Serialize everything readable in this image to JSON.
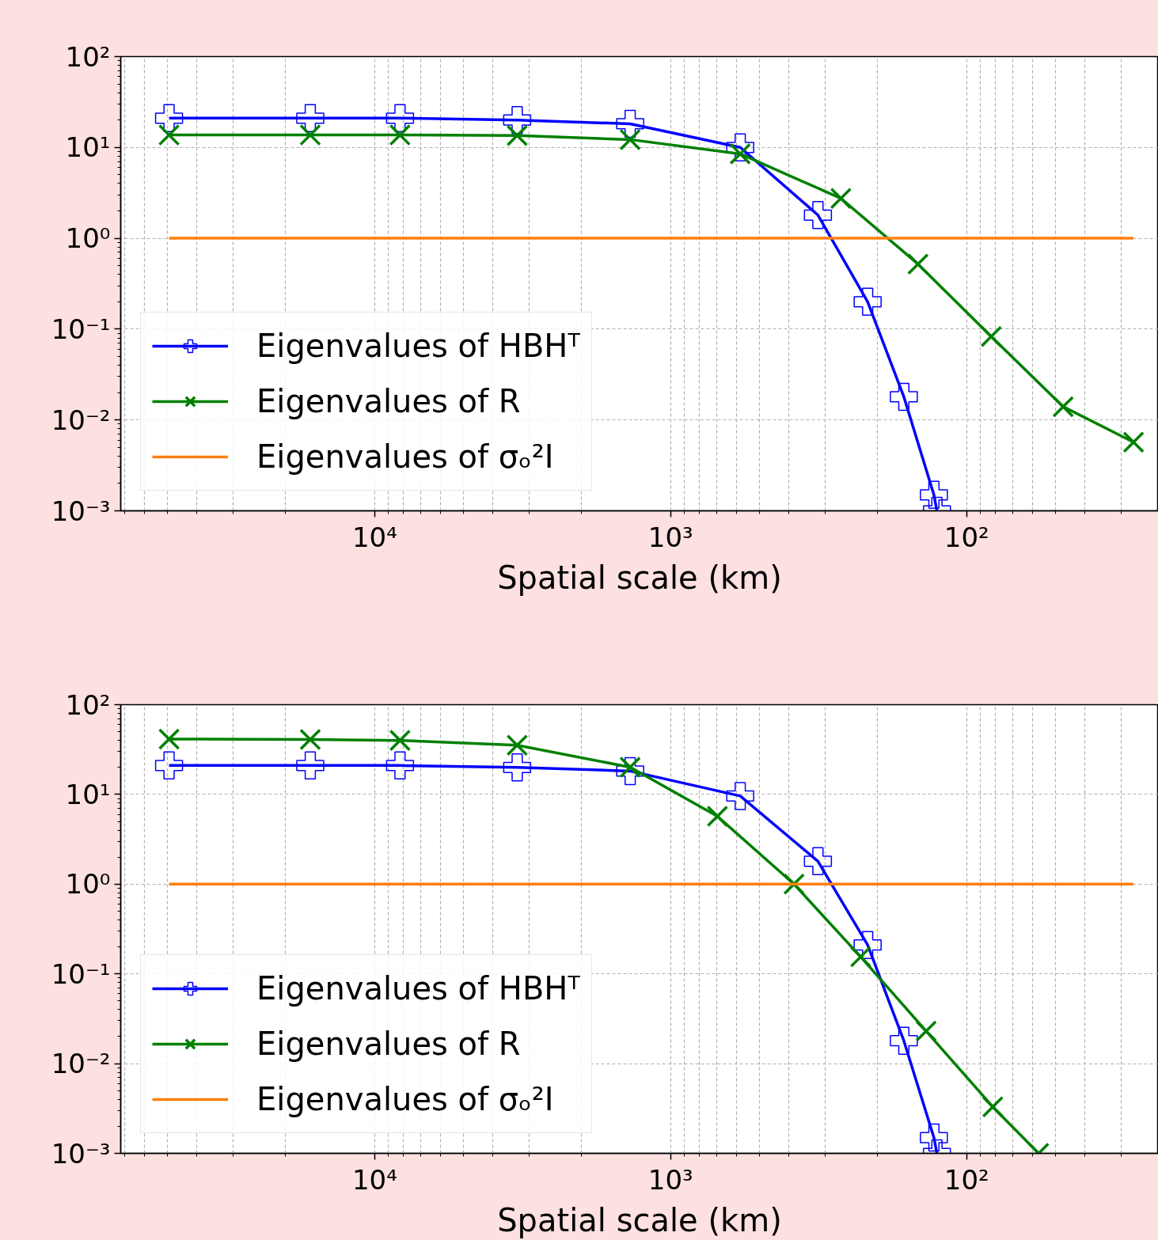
{
  "chart_data": [
    {
      "type": "line",
      "xlabel": "Spatial scale (km)",
      "log": "xy",
      "grid": true,
      "legend": "bottom left",
      "xlim": [
        72100,
        22.5
      ],
      "ylim": [
        0.001,
        100
      ],
      "xticks": [
        {
          "value": 10000,
          "label": "10⁴"
        },
        {
          "value": 1000,
          "label": "10³"
        },
        {
          "value": 100,
          "label": "10²"
        }
      ],
      "yticks": [
        {
          "value": 0.001,
          "label": "10⁻³"
        },
        {
          "value": 0.01,
          "label": "10⁻²"
        },
        {
          "value": 0.1,
          "label": "10⁻¹"
        },
        {
          "value": 1,
          "label": "10⁰"
        },
        {
          "value": 10,
          "label": "10¹"
        },
        {
          "value": 100,
          "label": "10²"
        }
      ],
      "series": [
        {
          "name": "Eigenvalues of HBHᵀ",
          "color": "#0000ff",
          "marker": "cross",
          "x": [
            49500,
            16500,
            8210,
            3300,
            1370,
            582,
            318,
            216,
            163,
            129,
            126
          ],
          "values": [
            21,
            21,
            21,
            20,
            18.2,
            10,
            1.8,
            0.2,
            0.018,
            0.0015,
            0.001
          ]
        },
        {
          "name": "Eigenvalues of R",
          "color": "#008000",
          "marker": "x",
          "x": [
            49500,
            16500,
            8210,
            3300,
            1370,
            582,
            266,
            146,
            82.6,
            47.2,
            27.3
          ],
          "values": [
            13.7,
            13.7,
            13.7,
            13.5,
            12.2,
            8.5,
            2.75,
            0.52,
            0.083,
            0.014,
            0.0057
          ]
        },
        {
          "name": "Eigenvalues of σₒ²I",
          "color": "#ff7f0e",
          "marker": "none",
          "x": [
            49500,
            27.3
          ],
          "values": [
            1,
            1
          ]
        }
      ]
    },
    {
      "type": "line",
      "xlabel": "Spatial scale (km)",
      "log": "xy",
      "grid": true,
      "legend": "bottom left",
      "xlim": [
        72100,
        22.5
      ],
      "ylim": [
        0.001,
        100
      ],
      "xticks": [
        {
          "value": 10000,
          "label": "10⁴"
        },
        {
          "value": 1000,
          "label": "10³"
        },
        {
          "value": 100,
          "label": "10²"
        }
      ],
      "yticks": [
        {
          "value": 0.001,
          "label": "10⁻³"
        },
        {
          "value": 0.01,
          "label": "10⁻²"
        },
        {
          "value": 0.1,
          "label": "10⁻¹"
        },
        {
          "value": 1,
          "label": "10⁰"
        },
        {
          "value": 10,
          "label": "10¹"
        },
        {
          "value": 100,
          "label": "10²"
        }
      ],
      "series": [
        {
          "name": "Eigenvalues of HBHᵀ",
          "color": "#0000ff",
          "marker": "cross",
          "x": [
            49500,
            16500,
            8210,
            3300,
            1370,
            582,
            318,
            216,
            163,
            129,
            126
          ],
          "values": [
            21,
            21,
            21,
            20,
            18.2,
            9.6,
            1.8,
            0.21,
            0.018,
            0.0015,
            0.001
          ]
        },
        {
          "name": "Eigenvalues of R",
          "color": "#008000",
          "marker": "x",
          "x": [
            49500,
            16500,
            8210,
            3300,
            1370,
            695,
            383,
            228,
            137,
            81.6,
            57.1
          ],
          "values": [
            41.4,
            41,
            40,
            35.3,
            20.1,
            5.7,
            1.0,
            0.155,
            0.023,
            0.0033,
            0.001
          ]
        },
        {
          "name": "Eigenvalues of σₒ²I",
          "color": "#ff7f0e",
          "marker": "none",
          "x": [
            49500,
            27.3
          ],
          "values": [
            1,
            1
          ]
        }
      ]
    }
  ]
}
